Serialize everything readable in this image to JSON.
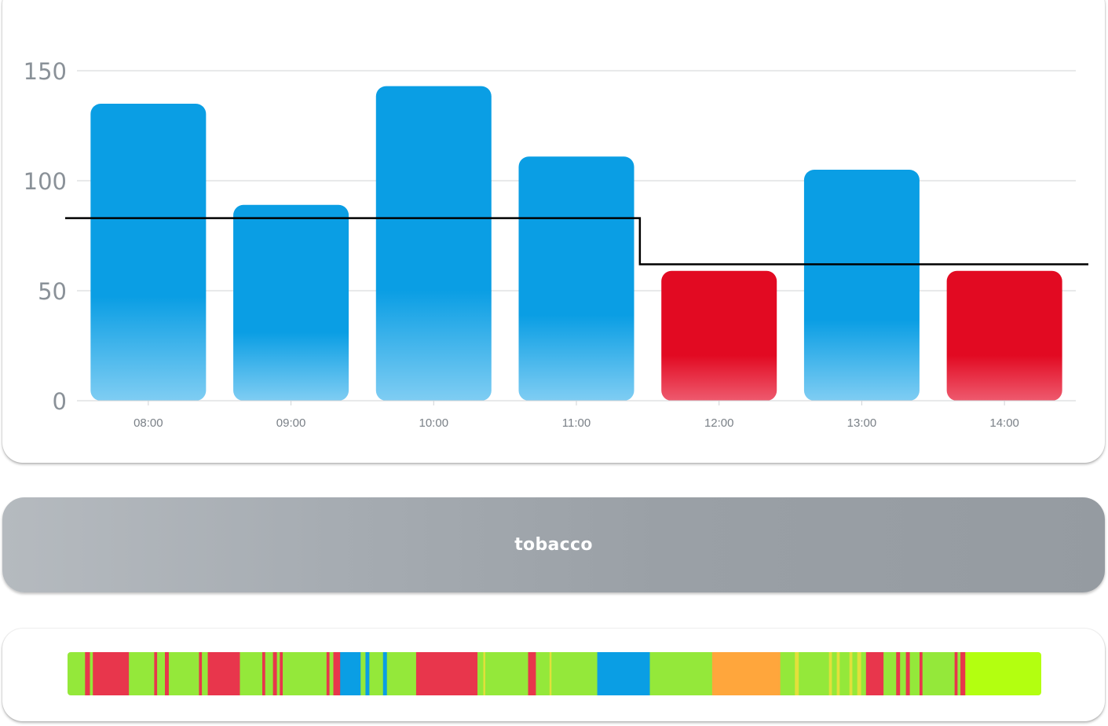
{
  "chart_data": {
    "type": "bar",
    "categories": [
      "08:00",
      "09:00",
      "10:00",
      "11:00",
      "12:00",
      "13:00",
      "14:00"
    ],
    "values": [
      135,
      89,
      143,
      111,
      59,
      105,
      59
    ],
    "bar_colors": [
      "blue",
      "blue",
      "blue",
      "blue",
      "red",
      "blue",
      "red"
    ],
    "threshold_line": {
      "x": [
        0,
        1,
        2,
        3,
        4,
        5,
        6
      ],
      "y": [
        83,
        83,
        83,
        83,
        62,
        62,
        62
      ]
    },
    "yticks": [
      "0",
      "50",
      "100",
      "150"
    ],
    "ytick_values": [
      0,
      50,
      100,
      150
    ],
    "ylim": [
      0,
      150
    ],
    "grid": true,
    "colors": {
      "blue": "#0a9ee4",
      "blue_light": "#7fcdf3",
      "red": "#e20a22",
      "red_light": "#ee5a6e",
      "line": "#000000",
      "grid": "#d0d3d6",
      "ytick": "#8a9198",
      "xtick": "#7a8087"
    }
  },
  "category_button": {
    "label": "tobacco"
  },
  "timeline": {
    "colors": {
      "green": "#94e83a",
      "red": "#e8364c",
      "blue": "#0a9ee4",
      "yellow": "#e2e03a",
      "orange": "#ffa63c",
      "lime": "#b3ff10"
    },
    "segments": [
      {
        "start": 0,
        "end": 1.8,
        "color": "green"
      },
      {
        "start": 1.8,
        "end": 2.3,
        "color": "red"
      },
      {
        "start": 2.3,
        "end": 2.6,
        "color": "green"
      },
      {
        "start": 2.6,
        "end": 6.3,
        "color": "red"
      },
      {
        "start": 6.3,
        "end": 8.9,
        "color": "green"
      },
      {
        "start": 8.9,
        "end": 9.2,
        "color": "red"
      },
      {
        "start": 9.2,
        "end": 10.0,
        "color": "green"
      },
      {
        "start": 10.0,
        "end": 10.4,
        "color": "red"
      },
      {
        "start": 10.4,
        "end": 13.5,
        "color": "green"
      },
      {
        "start": 13.5,
        "end": 13.8,
        "color": "red"
      },
      {
        "start": 13.8,
        "end": 14.4,
        "color": "green"
      },
      {
        "start": 14.4,
        "end": 17.7,
        "color": "red"
      },
      {
        "start": 17.7,
        "end": 20.0,
        "color": "green"
      },
      {
        "start": 20.0,
        "end": 20.3,
        "color": "red"
      },
      {
        "start": 20.3,
        "end": 21.1,
        "color": "green"
      },
      {
        "start": 21.1,
        "end": 21.5,
        "color": "red"
      },
      {
        "start": 21.5,
        "end": 21.8,
        "color": "green"
      },
      {
        "start": 21.8,
        "end": 22.1,
        "color": "red"
      },
      {
        "start": 22.1,
        "end": 26.6,
        "color": "green"
      },
      {
        "start": 26.6,
        "end": 26.9,
        "color": "red"
      },
      {
        "start": 26.9,
        "end": 27.3,
        "color": "green"
      },
      {
        "start": 27.3,
        "end": 28.0,
        "color": "red"
      },
      {
        "start": 28.0,
        "end": 30.1,
        "color": "blue"
      },
      {
        "start": 30.1,
        "end": 30.6,
        "color": "green"
      },
      {
        "start": 30.6,
        "end": 31.0,
        "color": "blue"
      },
      {
        "start": 31.0,
        "end": 32.4,
        "color": "green"
      },
      {
        "start": 32.4,
        "end": 32.8,
        "color": "blue"
      },
      {
        "start": 32.8,
        "end": 35.8,
        "color": "green"
      },
      {
        "start": 35.8,
        "end": 42.1,
        "color": "red"
      },
      {
        "start": 42.1,
        "end": 42.7,
        "color": "green"
      },
      {
        "start": 42.7,
        "end": 42.9,
        "color": "yellow"
      },
      {
        "start": 42.9,
        "end": 47.3,
        "color": "green"
      },
      {
        "start": 47.3,
        "end": 48.1,
        "color": "red"
      },
      {
        "start": 48.1,
        "end": 49.5,
        "color": "green"
      },
      {
        "start": 49.5,
        "end": 49.7,
        "color": "yellow"
      },
      {
        "start": 49.7,
        "end": 54.4,
        "color": "green"
      },
      {
        "start": 54.4,
        "end": 59.8,
        "color": "blue"
      },
      {
        "start": 59.8,
        "end": 66.2,
        "color": "green"
      },
      {
        "start": 66.2,
        "end": 73.2,
        "color": "orange"
      },
      {
        "start": 73.2,
        "end": 74.7,
        "color": "green"
      },
      {
        "start": 74.7,
        "end": 75.1,
        "color": "yellow"
      },
      {
        "start": 75.1,
        "end": 78.2,
        "color": "green"
      },
      {
        "start": 78.2,
        "end": 78.5,
        "color": "yellow"
      },
      {
        "start": 78.5,
        "end": 79.0,
        "color": "green"
      },
      {
        "start": 79.0,
        "end": 79.3,
        "color": "yellow"
      },
      {
        "start": 79.3,
        "end": 80.3,
        "color": "green"
      },
      {
        "start": 80.3,
        "end": 80.6,
        "color": "yellow"
      },
      {
        "start": 80.6,
        "end": 81.1,
        "color": "green"
      },
      {
        "start": 81.1,
        "end": 81.5,
        "color": "yellow"
      },
      {
        "start": 81.5,
        "end": 82.0,
        "color": "green"
      },
      {
        "start": 82.0,
        "end": 83.8,
        "color": "red"
      },
      {
        "start": 83.8,
        "end": 85.1,
        "color": "green"
      },
      {
        "start": 85.1,
        "end": 85.5,
        "color": "red"
      },
      {
        "start": 85.5,
        "end": 86.1,
        "color": "green"
      },
      {
        "start": 86.1,
        "end": 86.5,
        "color": "red"
      },
      {
        "start": 86.5,
        "end": 87.5,
        "color": "green"
      },
      {
        "start": 87.5,
        "end": 87.8,
        "color": "red"
      },
      {
        "start": 87.8,
        "end": 91.1,
        "color": "green"
      },
      {
        "start": 91.1,
        "end": 91.4,
        "color": "red"
      },
      {
        "start": 91.4,
        "end": 91.7,
        "color": "green"
      },
      {
        "start": 91.7,
        "end": 92.2,
        "color": "red"
      },
      {
        "start": 92.2,
        "end": 100,
        "color": "lime"
      }
    ]
  }
}
